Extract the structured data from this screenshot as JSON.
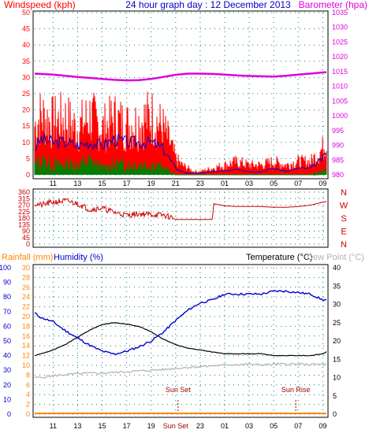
{
  "header": {
    "windspeed_label": "Windspeed (kph)",
    "graph_title": "24 hour graph day : 12 December 2013",
    "barometer_label": "Barometer (hpa)"
  },
  "lower_header": {
    "rainfall_label": "Rainfall (mm)",
    "humidity_label": "Humidity (%)",
    "temperature_label": "Temperature (°C)",
    "dewpoint_label": "Dew Point (°C)"
  },
  "annotations": {
    "sunset_label": "Sun Set",
    "sunrise_label": "Sun Rise"
  },
  "colors": {
    "wind_red": "#ff0000",
    "wind_blue": "#0000cc",
    "wind_green": "#008000",
    "barometer": "#dd00dd",
    "direction": "#cc0000",
    "humidity": "#0000cc",
    "temperature": "#000000",
    "dewpoint": "#b0b0b0",
    "rainfall": "#ff8800",
    "axis_left_lower": "#ff8800",
    "axis_humidity": "#0000cc",
    "grid": "#008080"
  },
  "x_ticks": [
    "11",
    "13",
    "15",
    "17",
    "19",
    "21",
    "23",
    "01",
    "03",
    "05",
    "07",
    "09"
  ],
  "x_extra_ticks": [
    "Sun Set",
    "Sun Rise"
  ],
  "chart_data": [
    {
      "type": "line",
      "title": "24 hour graph day : 12 December 2013",
      "xlabel": "",
      "x_unit": "hour",
      "x_range": [
        9.5,
        33.3
      ],
      "left_axis": {
        "label": "Windspeed (kph)",
        "ylim": [
          0,
          50
        ],
        "ticks": [
          0,
          5,
          10,
          15,
          20,
          25,
          30,
          35,
          40,
          45,
          50
        ]
      },
      "right_axis": {
        "label": "Barometer (hpa)",
        "ylim": [
          980,
          1035
        ],
        "ticks": [
          980,
          985,
          990,
          995,
          1000,
          1005,
          1010,
          1015,
          1020,
          1025,
          1030,
          1035
        ]
      },
      "grid": true,
      "series": [
        {
          "name": "Barometer (hpa)",
          "axis": "right",
          "x": [
            9.5,
            11,
            13,
            15,
            16,
            17,
            18,
            19,
            20,
            21,
            22,
            23,
            24,
            25,
            26,
            27,
            28,
            29,
            30,
            31,
            32,
            33,
            33.3
          ],
          "values": [
            1014.3,
            1014.0,
            1013.2,
            1012.5,
            1012.2,
            1012.0,
            1012.1,
            1012.5,
            1013.2,
            1013.9,
            1014.3,
            1014.3,
            1014.2,
            1014.0,
            1013.7,
            1013.5,
            1013.4,
            1013.3,
            1013.6,
            1014.0,
            1014.3,
            1014.7,
            1014.8
          ]
        },
        {
          "name": "Wind gust",
          "axis": "left",
          "x": [
            9.5,
            10,
            11,
            12,
            13,
            14,
            15,
            16,
            17,
            18,
            19,
            20,
            20.5,
            21,
            21.5,
            22,
            22.5,
            23,
            24,
            25,
            26,
            27,
            28,
            29,
            30,
            31,
            32,
            33,
            33.3
          ],
          "values": [
            15,
            18,
            16,
            17,
            14,
            18,
            14,
            17,
            15,
            16,
            18,
            14,
            10,
            5,
            3,
            2,
            1,
            1,
            2,
            3,
            4,
            3,
            3,
            4,
            3,
            4,
            4,
            8,
            12
          ]
        },
        {
          "name": "Wind average",
          "axis": "left",
          "x": [
            9.5,
            10,
            11,
            12,
            13,
            14,
            15,
            16,
            17,
            18,
            19,
            20,
            20.5,
            21,
            21.5,
            22,
            22.5,
            23,
            24,
            25,
            26,
            27,
            28,
            29,
            30,
            31,
            32,
            33,
            33.3
          ],
          "values": [
            8,
            11,
            10,
            10,
            9,
            10,
            9,
            11,
            10,
            10,
            10,
            8,
            5,
            2,
            1,
            0.5,
            0.5,
            0.5,
            1,
            1,
            2,
            1,
            1,
            2,
            1,
            2,
            2,
            5,
            7
          ]
        },
        {
          "name": "Wind lull",
          "axis": "left",
          "x": [
            9.5,
            10,
            11,
            12,
            13,
            14,
            15,
            16,
            17,
            18,
            19,
            20,
            20.5,
            21,
            21.5,
            22,
            22.5,
            23,
            24,
            25,
            26,
            27,
            28,
            29,
            30,
            31,
            32,
            33,
            33.3
          ],
          "values": [
            3,
            4,
            3,
            3,
            3,
            4,
            2,
            3,
            3,
            3,
            3,
            2,
            1,
            0,
            0,
            0,
            0,
            0,
            0,
            0,
            0,
            0,
            0,
            0,
            0,
            0,
            0,
            1,
            2
          ]
        }
      ]
    },
    {
      "type": "line",
      "xlabel": "",
      "x_unit": "hour",
      "x_range": [
        9.5,
        33.3
      ],
      "left_axis": {
        "ylim": [
          0,
          360
        ],
        "ticks": [
          0,
          45,
          90,
          135,
          180,
          225,
          270,
          315,
          360
        ]
      },
      "right_axis": {
        "categories": [
          "N",
          "W",
          "S",
          "E",
          "N"
        ]
      },
      "series": [
        {
          "name": "Wind direction",
          "x": [
            9.5,
            10,
            11,
            12,
            13,
            14,
            15,
            16,
            17,
            18,
            19,
            20,
            20.5,
            21,
            22,
            23,
            24,
            24.1,
            25,
            26,
            27,
            28,
            29,
            30,
            31,
            32,
            33,
            33.3
          ],
          "values": [
            280,
            270,
            290,
            300,
            280,
            240,
            250,
            220,
            200,
            210,
            205,
            200,
            190,
            170,
            170,
            170,
            170,
            280,
            265,
            260,
            260,
            260,
            255,
            255,
            260,
            270,
            290,
            295
          ]
        }
      ]
    },
    {
      "type": "line",
      "xlabel": "",
      "x_unit": "hour",
      "x_range": [
        9.5,
        33.3
      ],
      "humidity_axis": {
        "label": "Humidity (%)",
        "ylim": [
          0,
          100
        ],
        "ticks": [
          0,
          10,
          20,
          30,
          40,
          50,
          60,
          70,
          80,
          90,
          100
        ]
      },
      "rainfall_axis": {
        "label": "Rainfall (mm)",
        "ylim": [
          0,
          30
        ],
        "ticks": [
          0,
          2,
          4,
          6,
          8,
          10,
          12,
          14,
          16,
          18,
          20,
          22,
          24,
          26,
          28,
          30
        ]
      },
      "temperature_axis": {
        "label": "Temperature (°C)",
        "ylim": [
          0,
          40
        ],
        "ticks": [
          0,
          5,
          10,
          15,
          20,
          25,
          30,
          35,
          40
        ]
      },
      "annotations": [
        {
          "text": "Sun Set",
          "x": 21.2
        },
        {
          "text": "Sun Rise",
          "x": 30.8
        }
      ],
      "series": [
        {
          "name": "Humidity (%)",
          "axis": "humidity",
          "x": [
            9.5,
            10,
            11,
            12,
            13,
            14,
            15,
            16,
            17,
            18,
            19,
            20,
            21,
            22,
            23,
            24,
            25,
            26,
            27,
            28,
            29,
            30,
            31,
            32,
            33,
            33.3
          ],
          "values": [
            69,
            66,
            63,
            57,
            52,
            47,
            43,
            41,
            43,
            46,
            50,
            56,
            64,
            71,
            76,
            78,
            82,
            82,
            82,
            82,
            84,
            84,
            83,
            82,
            78,
            78
          ]
        },
        {
          "name": "Temperature (°C)",
          "axis": "temperature",
          "x": [
            9.5,
            10,
            11,
            12,
            13,
            14,
            15,
            16,
            17,
            18,
            19,
            20,
            21,
            22,
            23,
            24,
            25,
            26,
            27,
            28,
            29,
            30,
            31,
            32,
            33,
            33.3
          ],
          "values": [
            16,
            16.5,
            17.5,
            19,
            21,
            23,
            24.5,
            25,
            24.6,
            24,
            22.5,
            20.5,
            19,
            18,
            17.5,
            17,
            16.5,
            16.5,
            16.5,
            16.5,
            16,
            16,
            16,
            16,
            16.5,
            17
          ]
        },
        {
          "name": "Dew Point (°C)",
          "axis": "temperature",
          "x": [
            9.5,
            10,
            11,
            12,
            13,
            14,
            15,
            16,
            17,
            18,
            19,
            20,
            21,
            22,
            23,
            24,
            25,
            26,
            27,
            28,
            29,
            30,
            31,
            32,
            33,
            33.3
          ],
          "values": [
            10,
            10,
            10.5,
            10.8,
            11,
            11.2,
            11.2,
            11.4,
            11.6,
            11.8,
            12,
            12.2,
            12.5,
            12.8,
            13,
            13.2,
            13.4,
            13.6,
            13.6,
            13.5,
            13.6,
            13.7,
            13.6,
            13.6,
            13.6,
            13.7
          ]
        },
        {
          "name": "Rainfall (mm)",
          "axis": "rainfall",
          "x": [
            9.5,
            33.3
          ],
          "values": [
            0,
            0
          ]
        }
      ]
    }
  ]
}
